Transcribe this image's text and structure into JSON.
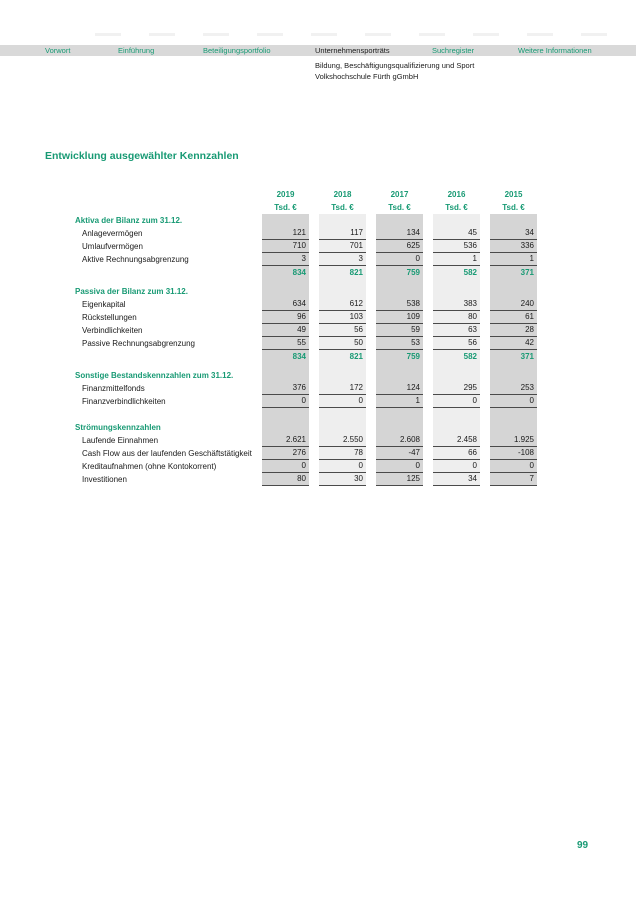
{
  "colors": {
    "accent": "#189a74",
    "nav_bg": "#d9d9d9",
    "stripe_dark": "#d5d5d5",
    "stripe_light": "#eeeeee",
    "rule": "#4a4a4a",
    "text": "#1a1a1a"
  },
  "nav": {
    "items": [
      {
        "label": "Vorwort",
        "active": false
      },
      {
        "label": "Einführung",
        "active": false
      },
      {
        "label": "Beteiligungsportfolio",
        "active": false
      },
      {
        "label": "Unternehmensporträts",
        "active": true
      },
      {
        "label": "Suchregister",
        "active": false
      },
      {
        "label": "Weitere Informationen",
        "active": false
      }
    ]
  },
  "subheader": {
    "line1": "Bildung, Beschäftigungsqualifizierung und Sport",
    "line2": "Volkshochschule Fürth gGmbH"
  },
  "heading": "Entwicklung ausgewählter Kennzahlen",
  "page_number": "99",
  "table": {
    "years": [
      "2019",
      "2018",
      "2017",
      "2016",
      "2015"
    ],
    "unit": "Tsd. €",
    "sections": [
      {
        "title": "Aktiva der Bilanz zum 31.12.",
        "rows": [
          {
            "label": "Anlagevermögen",
            "values": [
              "121",
              "117",
              "134",
              "45",
              "34"
            ]
          },
          {
            "label": "Umlaufvermögen",
            "values": [
              "710",
              "701",
              "625",
              "536",
              "336"
            ]
          },
          {
            "label": "Aktive Rechnungsabgrenzung",
            "values": [
              "3",
              "3",
              "0",
              "1",
              "1"
            ]
          }
        ],
        "total": [
          "834",
          "821",
          "759",
          "582",
          "371"
        ]
      },
      {
        "title": "Passiva der Bilanz zum 31.12.",
        "rows": [
          {
            "label": "Eigenkapital",
            "values": [
              "634",
              "612",
              "538",
              "383",
              "240"
            ]
          },
          {
            "label": "Rückstellungen",
            "values": [
              "96",
              "103",
              "109",
              "80",
              "61"
            ]
          },
          {
            "label": "Verbindlichkeiten",
            "values": [
              "49",
              "56",
              "59",
              "63",
              "28"
            ]
          },
          {
            "label": "Passive Rechnungsabgrenzung",
            "values": [
              "55",
              "50",
              "53",
              "56",
              "42"
            ]
          }
        ],
        "total": [
          "834",
          "821",
          "759",
          "582",
          "371"
        ]
      },
      {
        "title": "Sonstige Bestandskennzahlen zum 31.12.",
        "rows": [
          {
            "label": "Finanzmittelfonds",
            "values": [
              "376",
              "172",
              "124",
              "295",
              "253"
            ]
          },
          {
            "label": "Finanzverbindlichkeiten",
            "values": [
              "0",
              "0",
              "1",
              "0",
              "0"
            ]
          }
        ]
      },
      {
        "title": "Strömungskennzahlen",
        "rows": [
          {
            "label": "Laufende Einnahmen",
            "values": [
              "2.621",
              "2.550",
              "2.608",
              "2.458",
              "1.925"
            ]
          },
          {
            "label": "Cash Flow aus der laufenden Geschäftstätigkeit",
            "values": [
              "276",
              "78",
              "-47",
              "66",
              "-108"
            ]
          },
          {
            "label": "Kreditaufnahmen (ohne Kontokorrent)",
            "values": [
              "0",
              "0",
              "0",
              "0",
              "0"
            ]
          },
          {
            "label": "Investitionen",
            "values": [
              "80",
              "30",
              "125",
              "34",
              "7"
            ]
          }
        ]
      }
    ]
  }
}
